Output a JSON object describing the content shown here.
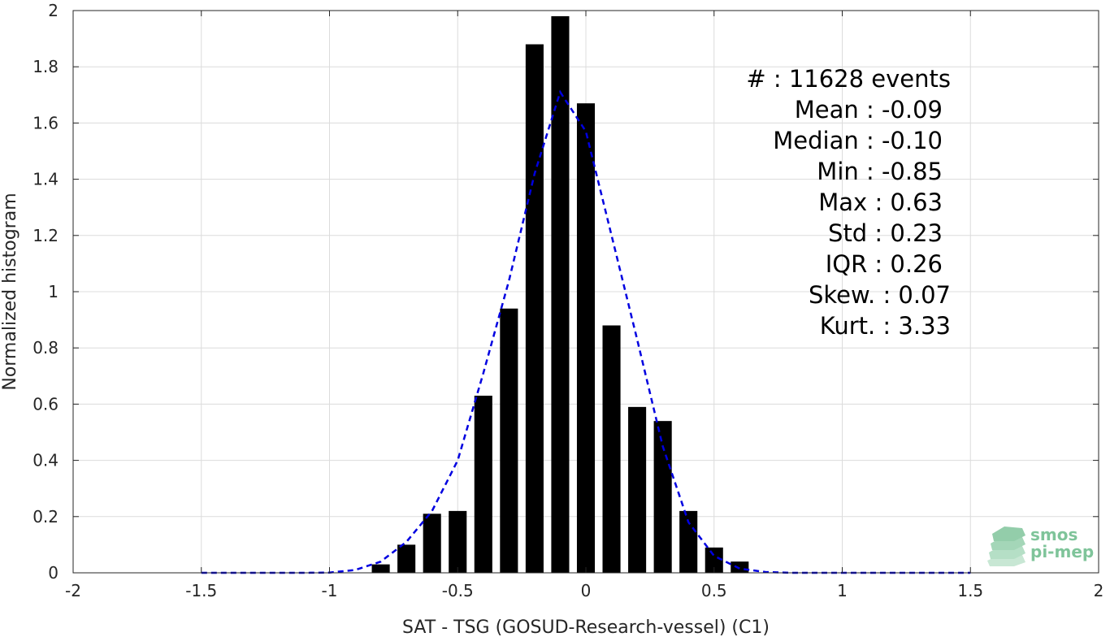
{
  "chart_data": {
    "type": "bar",
    "xlabel": "SAT - TSG (GOSUD-Research-vessel) (C1)",
    "ylabel": "Normalized histogram",
    "xlim": [
      -2,
      2
    ],
    "ylim": [
      0,
      2
    ],
    "grid": true,
    "x_ticks": [
      "-2",
      "-1.5",
      "-1",
      "-0.5",
      "0",
      "0.5",
      "1",
      "1.5",
      "2"
    ],
    "y_ticks": [
      "0",
      "0.2",
      "0.4",
      "0.6",
      "0.8",
      "1",
      "1.2",
      "1.4",
      "1.6",
      "1.8",
      "2"
    ],
    "bar_color": "#000000",
    "bar_width": 0.07,
    "bars": {
      "x": [
        -0.8,
        -0.7,
        -0.6,
        -0.5,
        -0.4,
        -0.3,
        -0.2,
        -0.1,
        0.0,
        0.1,
        0.2,
        0.3,
        0.4,
        0.5,
        0.6
      ],
      "values": [
        0.03,
        0.1,
        0.21,
        0.22,
        0.63,
        0.94,
        1.88,
        1.98,
        1.67,
        0.88,
        0.59,
        0.54,
        0.22,
        0.09,
        0.04
      ]
    },
    "fit_curve": {
      "style": "dashed",
      "color": "#0000e0",
      "x": [
        -1.5,
        -1.4,
        -1.3,
        -1.2,
        -1.1,
        -1.0,
        -0.9,
        -0.8,
        -0.7,
        -0.6,
        -0.5,
        -0.4,
        -0.3,
        -0.2,
        -0.1,
        0.0,
        0.1,
        0.2,
        0.3,
        0.4,
        0.5,
        0.6,
        0.7,
        0.8,
        0.9,
        1.0,
        1.1,
        1.2,
        1.3,
        1.4,
        1.5
      ],
      "y": [
        0,
        0,
        0,
        0,
        0,
        0.001,
        0.01,
        0.04,
        0.11,
        0.22,
        0.4,
        0.71,
        1.04,
        1.42,
        1.71,
        1.57,
        1.2,
        0.83,
        0.45,
        0.18,
        0.06,
        0.015,
        0.003,
        0,
        0,
        0,
        0,
        0,
        0,
        0,
        0
      ]
    },
    "annotations": [
      "#  : 11628 events",
      "Mean : -0.09",
      "Median : -0.10",
      "Min : -0.85",
      "Max : 0.63",
      "Std : 0.23",
      "IQR : 0.26",
      "Skew. : 0.07",
      "Kurt. : 3.33"
    ]
  },
  "logo": {
    "line1": "smos",
    "line2": "pi-mep",
    "color": "#7fc49a"
  }
}
